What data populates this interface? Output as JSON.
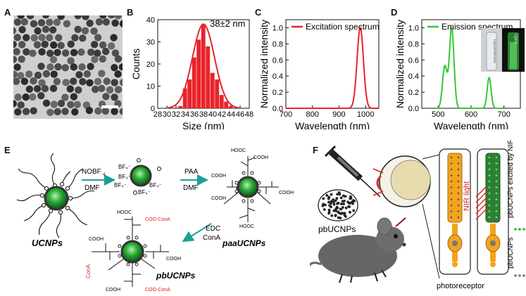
{
  "panel_labels": {
    "a": "A",
    "b": "B",
    "c": "C",
    "d": "D",
    "e": "E",
    "f": "F"
  },
  "colors": {
    "bar": "#e8242a",
    "excitation": "#e8242a",
    "emission": "#35c735",
    "concanavalin": "#d9231d",
    "core": "#2cae35"
  },
  "chart_data": [
    {
      "type": "bar",
      "panel": "B",
      "title": "",
      "annotation": "38±2 nm",
      "xlabel": "Size (nm)",
      "ylabel": "Counts",
      "x": [
        33,
        34,
        35,
        36,
        37,
        38,
        39,
        40,
        41,
        42,
        43,
        44
      ],
      "values": [
        1,
        9,
        13,
        23,
        31,
        38,
        28,
        16,
        13,
        6,
        3,
        1
      ],
      "fit": {
        "type": "gaussian",
        "center": 38,
        "sigma": 2.4,
        "peak": 38
      },
      "xlim": [
        28,
        48
      ],
      "ylim": [
        0,
        40
      ],
      "xticks": [
        "28",
        "30",
        "32",
        "34",
        "36",
        "38",
        "40",
        "42",
        "44",
        "46",
        "48"
      ],
      "yticks": [
        "0",
        "10",
        "20",
        "30",
        "40"
      ]
    },
    {
      "type": "line",
      "panel": "C",
      "series": [
        {
          "name": "Excitation spectrum",
          "center": 980,
          "width": 12,
          "peak": 1.0
        }
      ],
      "xlabel": "Wavelength (nm)",
      "ylabel": "Normalized intensity",
      "xlim": [
        700,
        1050
      ],
      "ylim": [
        0,
        1.1
      ],
      "xticks": [
        "700",
        "800",
        "900",
        "1000"
      ],
      "yticks": [
        "0.0",
        "0.2",
        "0.4",
        "0.6",
        "0.8",
        "1.0"
      ]
    },
    {
      "type": "line",
      "panel": "D",
      "series": [
        {
          "name": "Emission spectrum",
          "peaks": [
            [
              520,
              0.52,
              7
            ],
            [
              541,
              1.0,
              7
            ],
            [
              655,
              0.38,
              6
            ]
          ]
        }
      ],
      "xlabel": "Wavelength (nm)",
      "ylabel": "Normalized intensity",
      "xlim": [
        450,
        750
      ],
      "ylim": [
        0,
        1.1
      ],
      "xticks": [
        "500",
        "600",
        "700"
      ],
      "yticks": [
        "0.0",
        "0.2",
        "0.4",
        "0.6",
        "0.8",
        "1.0"
      ]
    }
  ],
  "scheme": {
    "ucnp_label": "UCNPs",
    "paa_label": "paaUCNPs",
    "pb_label": "pbUCNPs",
    "step1_top": "NOBF",
    "step1_sub": "4",
    "step1_bottom": "DMF",
    "step2_top": "PAA",
    "step2_bottom": "DMF",
    "step3_top": "EDC",
    "step3_bottom": "ConA",
    "bf4": "BF₄⁻",
    "cooh": "COOH",
    "conA_tag": "COO-ConA",
    "conA": "ConA",
    "hooc": "HOOC"
  },
  "panel_f": {
    "injection_label": "pbUCNPs",
    "nir_label": "NIR light",
    "receptor_label": "photoreceptor",
    "legend_excited": "pbUCNPs excited by NIR light",
    "legend_pb": "pbUCNPs"
  },
  "vial_labels": {
    "left": "UpconvVersion",
    "right": "Upco"
  }
}
